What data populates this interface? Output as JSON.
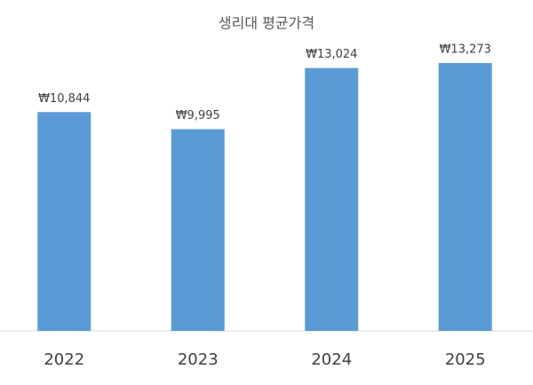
{
  "chart_data": {
    "type": "bar",
    "title": "생리대 평균가격",
    "categories": [
      "2022",
      "2023",
      "2024",
      "2025"
    ],
    "values": [
      10844,
      9995,
      13024,
      13273
    ],
    "value_labels": [
      "₩10,844",
      "₩9,995",
      "₩13,024",
      "₩13,273"
    ],
    "color": "#5b9bd5",
    "ylim": [
      0,
      14000
    ]
  }
}
